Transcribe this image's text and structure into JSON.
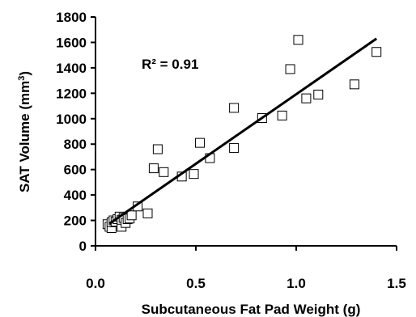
{
  "chart_data": {
    "type": "scatter",
    "xlabel": "Subcutaneous Fat Pad Weight (g)",
    "ylabel_main": "SAT Volume (mm",
    "ylabel_sup": "3",
    "ylabel_close": ")",
    "annotation": "R² = 0.91",
    "xlim": [
      0,
      1.5
    ],
    "ylim": [
      0,
      1800
    ],
    "xticks": [
      0.0,
      0.5,
      1.0,
      1.5
    ],
    "xtick_labels": [
      "0.0",
      "0.5",
      "1.0",
      "1.5"
    ],
    "yticks": [
      0,
      200,
      400,
      600,
      800,
      1000,
      1200,
      1400,
      1600,
      1800
    ],
    "ytick_labels": [
      "0",
      "200",
      "400",
      "600",
      "800",
      "1000",
      "1200",
      "1400",
      "1600",
      "1800"
    ],
    "marker": "open-square",
    "trendline": {
      "x": [
        0.07,
        1.4
      ],
      "y": [
        175,
        1630
      ]
    },
    "points": [
      [
        0.06,
        170
      ],
      [
        0.07,
        150
      ],
      [
        0.08,
        140
      ],
      [
        0.08,
        185
      ],
      [
        0.09,
        200
      ],
      [
        0.1,
        190
      ],
      [
        0.11,
        210
      ],
      [
        0.12,
        230
      ],
      [
        0.13,
        150
      ],
      [
        0.13,
        205
      ],
      [
        0.14,
        220
      ],
      [
        0.15,
        180
      ],
      [
        0.16,
        210
      ],
      [
        0.17,
        215
      ],
      [
        0.18,
        240
      ],
      [
        0.21,
        310
      ],
      [
        0.26,
        255
      ],
      [
        0.29,
        610
      ],
      [
        0.31,
        760
      ],
      [
        0.34,
        580
      ],
      [
        0.43,
        545
      ],
      [
        0.49,
        565
      ],
      [
        0.52,
        810
      ],
      [
        0.57,
        690
      ],
      [
        0.69,
        1085
      ],
      [
        0.69,
        770
      ],
      [
        0.83,
        1005
      ],
      [
        0.93,
        1025
      ],
      [
        0.97,
        1390
      ],
      [
        1.01,
        1620
      ],
      [
        1.05,
        1160
      ],
      [
        1.11,
        1190
      ],
      [
        1.29,
        1270
      ],
      [
        1.4,
        1525
      ]
    ]
  }
}
